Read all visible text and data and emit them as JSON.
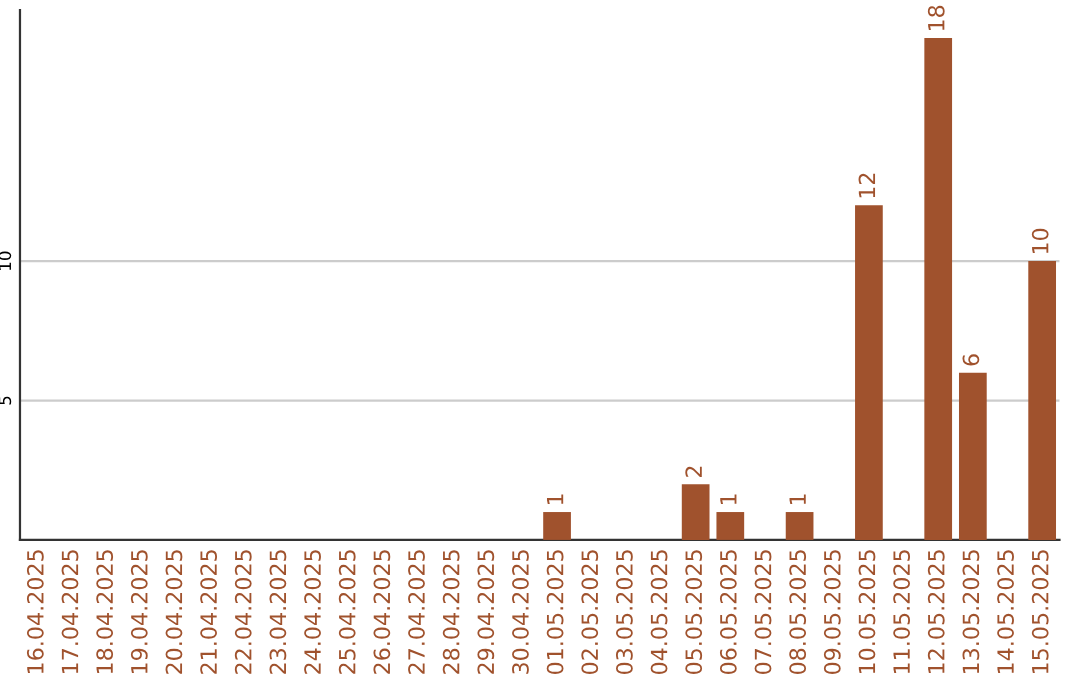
{
  "chart_data": {
    "type": "bar",
    "categories": [
      "16.04.2025",
      "17.04.2025",
      "18.04.2025",
      "19.04.2025",
      "20.04.2025",
      "21.04.2025",
      "22.04.2025",
      "23.04.2025",
      "24.04.2025",
      "25.04.2025",
      "26.04.2025",
      "27.04.2025",
      "28.04.2025",
      "29.04.2025",
      "30.04.2025",
      "01.05.2025",
      "02.05.2025",
      "03.05.2025",
      "04.05.2025",
      "05.05.2025",
      "06.05.2025",
      "07.05.2025",
      "08.05.2025",
      "09.05.2025",
      "10.05.2025",
      "11.05.2025",
      "12.05.2025",
      "13.05.2025",
      "14.05.2025",
      "15.05.2025"
    ],
    "values": [
      0,
      0,
      0,
      0,
      0,
      0,
      0,
      0,
      0,
      0,
      0,
      0,
      0,
      0,
      0,
      1,
      0,
      0,
      0,
      2,
      1,
      0,
      1,
      0,
      12,
      0,
      18,
      6,
      0,
      10
    ],
    "value_labels": [
      null,
      null,
      null,
      null,
      null,
      null,
      null,
      null,
      null,
      null,
      null,
      null,
      null,
      null,
      null,
      "1",
      null,
      null,
      null,
      "2",
      "1",
      null,
      "1",
      null,
      "12",
      null,
      "18",
      "6",
      null,
      "10"
    ],
    "color": "#a0522d",
    "ylim": [
      0,
      19
    ],
    "yticks": [
      5,
      10
    ],
    "grid": "y",
    "legend": false
  }
}
